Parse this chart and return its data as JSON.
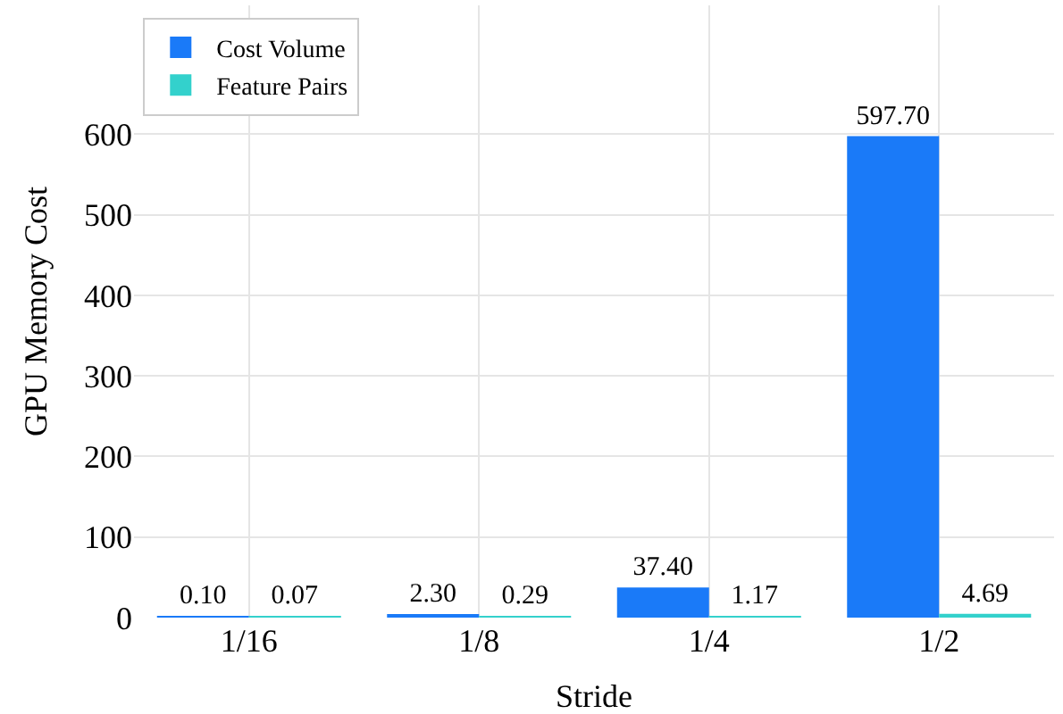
{
  "chart_data": {
    "type": "bar",
    "xlabel": "Stride",
    "ylabel": "GPU Memory Cost",
    "categories": [
      "1/16",
      "1/8",
      "1/4",
      "1/2"
    ],
    "series": [
      {
        "name": "Cost Volume",
        "color": "#1a7af8",
        "values": [
          0.1,
          2.3,
          37.4,
          597.7
        ],
        "value_labels": [
          "0.10",
          "2.30",
          "37.40",
          "597.70"
        ]
      },
      {
        "name": "Feature Pairs",
        "color": "#33d1cc",
        "values": [
          0.07,
          0.29,
          1.17,
          4.69
        ],
        "value_labels": [
          "0.07",
          "0.29",
          "1.17",
          "4.69"
        ]
      }
    ],
    "ylim": [
      0,
      760
    ],
    "yticks": [
      0,
      100,
      200,
      300,
      400,
      500,
      600
    ],
    "grid": true,
    "legend": "top left"
  }
}
